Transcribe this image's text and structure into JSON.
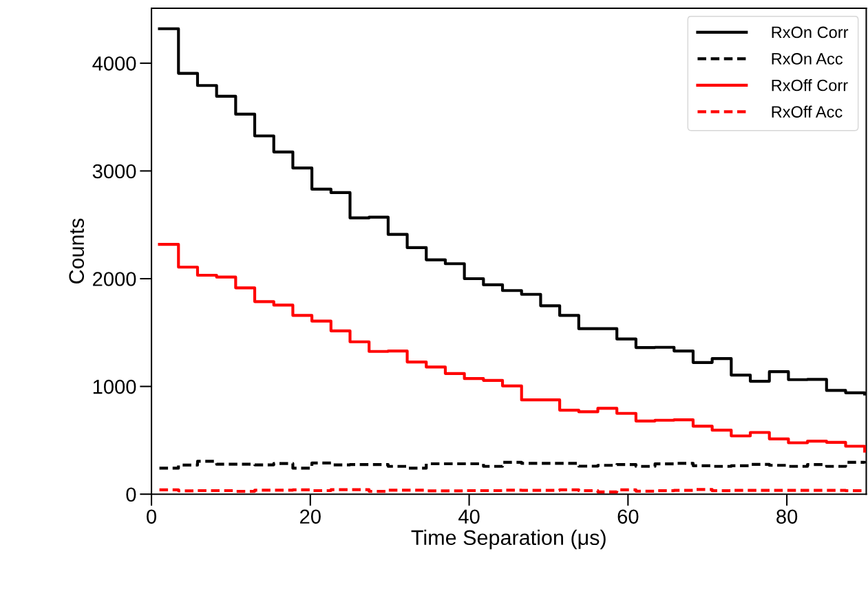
{
  "chart_data": {
    "type": "step",
    "xlabel": "Time Separation (μs)",
    "ylabel": "Counts",
    "x": [
      1,
      3.4,
      5.8,
      8.2,
      10.6,
      13,
      15.4,
      17.8,
      20.2,
      22.6,
      25,
      27.4,
      29.8,
      32.2,
      34.6,
      37,
      39.4,
      41.8,
      44.2,
      46.6,
      49,
      51.4,
      53.8,
      56.2,
      58.6,
      61,
      63.4,
      65.8,
      68.2,
      70.6,
      73,
      75.4,
      77.8,
      80.2,
      82.6,
      85,
      87.4,
      89.8
    ],
    "series": [
      {
        "name": "RxOn Corr",
        "color": "#000000",
        "line_style": "solid",
        "values": [
          4320,
          3906,
          3793,
          3693,
          3527,
          3325,
          3176,
          3027,
          2831,
          2799,
          2564,
          2571,
          2411,
          2288,
          2175,
          2139,
          2000,
          1943,
          1890,
          1855,
          1749,
          1659,
          1536,
          1536,
          1440,
          1361,
          1363,
          1329,
          1222,
          1259,
          1105,
          1048,
          1137,
          1063,
          1065,
          963,
          941,
          930
        ]
      },
      {
        "name": "RxOn Acc",
        "color": "#000000",
        "line_style": "dashed",
        "values": [
          241,
          270,
          305,
          278,
          278,
          272,
          285,
          241,
          289,
          272,
          275,
          275,
          258,
          241,
          282,
          282,
          282,
          258,
          296,
          286,
          286,
          286,
          260,
          268,
          275,
          258,
          281,
          286,
          264,
          258,
          264,
          277,
          268,
          258,
          275,
          258,
          296,
          286
        ]
      },
      {
        "name": "RxOff Corr",
        "color": "#ff0000",
        "line_style": "solid",
        "values": [
          2319,
          2107,
          2032,
          2015,
          1915,
          1787,
          1755,
          1659,
          1606,
          1516,
          1414,
          1325,
          1329,
          1227,
          1180,
          1120,
          1073,
          1056,
          1005,
          875,
          875,
          780,
          765,
          797,
          750,
          679,
          686,
          690,
          631,
          594,
          541,
          573,
          513,
          477,
          492,
          481,
          445,
          400
        ]
      },
      {
        "name": "RxOff Acc",
        "color": "#ff0000",
        "line_style": "dashed",
        "values": [
          40,
          31,
          33,
          33,
          26,
          37,
          37,
          40,
          33,
          42,
          42,
          26,
          37,
          37,
          31,
          31,
          33,
          33,
          37,
          36,
          36,
          40,
          32,
          21,
          40,
          28,
          32,
          36,
          43,
          32,
          36,
          36,
          36,
          36,
          36,
          36,
          32,
          32
        ]
      }
    ],
    "xlim": [
      0,
      90
    ],
    "ylim": [
      0,
      4510
    ],
    "xticks": [
      0,
      20,
      40,
      60,
      80
    ],
    "yticks": [
      0,
      1000,
      2000,
      3000,
      4000
    ],
    "grid": false,
    "legend": "top right"
  }
}
